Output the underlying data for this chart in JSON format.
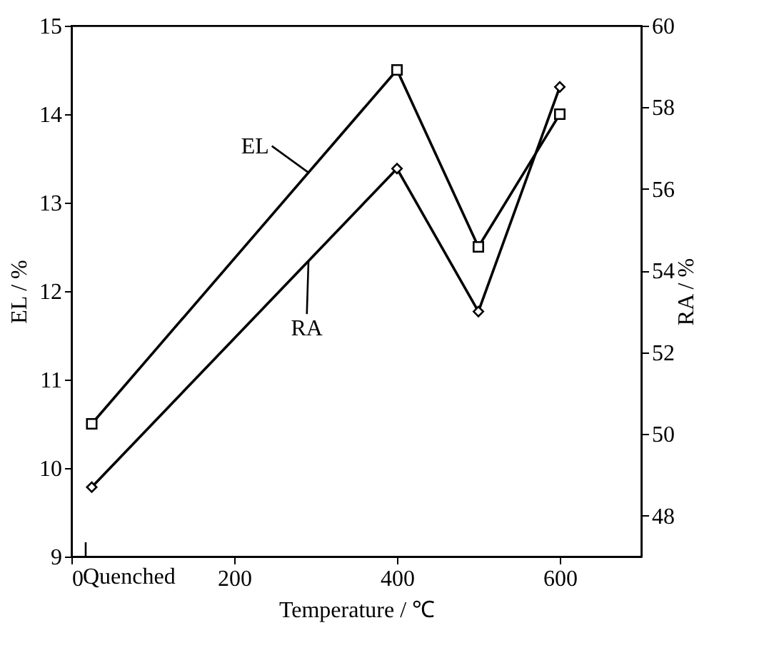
{
  "chart_data": {
    "type": "line",
    "xlabel": "Temperature / ℃",
    "ylabel": "EL / %",
    "y2label": "RA / %",
    "x": [
      25,
      400,
      500,
      600
    ],
    "series": [
      {
        "name": "EL",
        "color": "#000000",
        "marker": "square",
        "values": [
          10.5,
          14.5,
          12.5,
          14.0
        ]
      },
      {
        "name": "RA",
        "color": "#000000",
        "marker": "diamond",
        "axis": "y2",
        "values": [
          48.7,
          56.5,
          53.0,
          58.5
        ]
      }
    ],
    "xlim": [
      0,
      700
    ],
    "xticks": [
      0,
      200,
      400,
      600
    ],
    "ylim": [
      9,
      15
    ],
    "yticks": [
      9,
      10,
      11,
      12,
      13,
      14,
      15
    ],
    "y2lim": [
      47,
      60
    ],
    "y2ticks": [
      48,
      50,
      52,
      54,
      56,
      58,
      60
    ],
    "annotations": [
      "Quenched"
    ],
    "grid": false,
    "line_style": "solid"
  }
}
